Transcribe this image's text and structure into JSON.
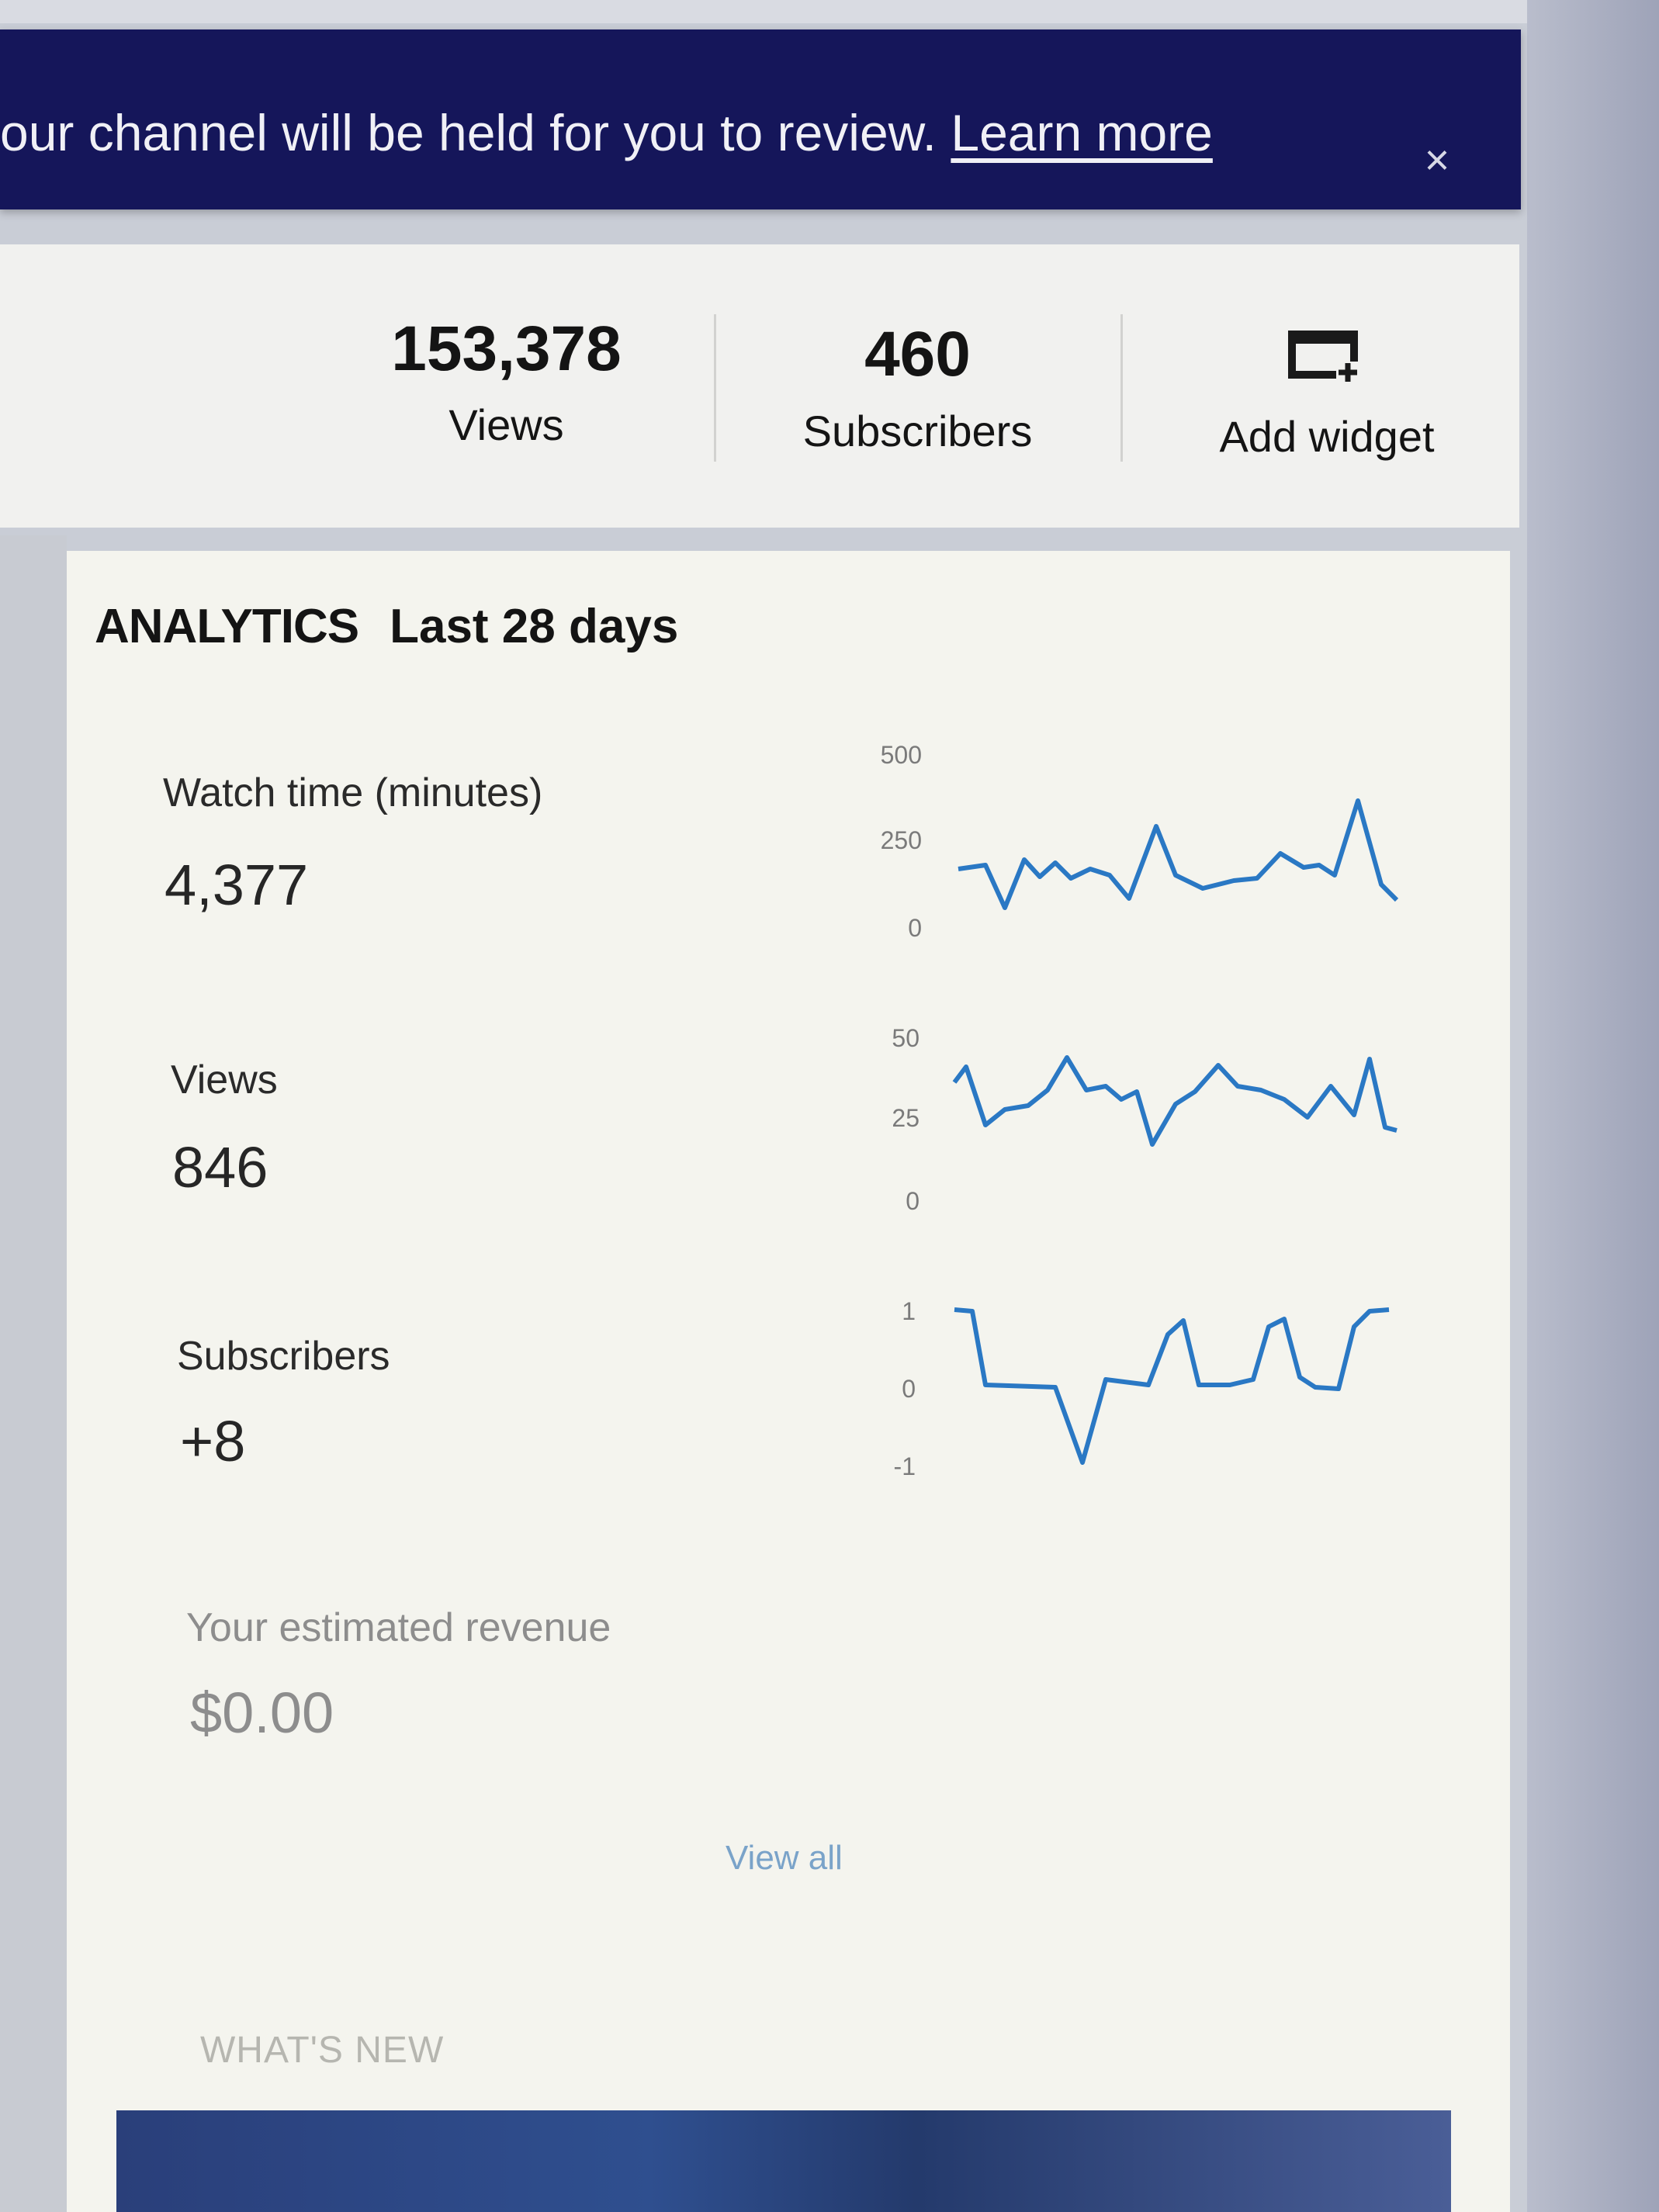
{
  "banner": {
    "message": "our channel will be held for you to review.",
    "link": "Learn more",
    "close_glyph": "×"
  },
  "stats": {
    "views_value": "153,378",
    "views_label": "Views",
    "subscribers_value": "460",
    "subscribers_label": "Subscribers",
    "add_widget_label": "Add widget",
    "add_widget_icon": "add-widget-icon"
  },
  "analytics": {
    "title": "ANALYTICS",
    "range": "Last 28 days",
    "watch_time": {
      "label": "Watch time (minutes)",
      "value": "4,377",
      "ticks": [
        "500",
        "250",
        "0"
      ]
    },
    "views": {
      "label": "Views",
      "value": "846",
      "ticks": [
        "50",
        "25",
        "0"
      ]
    },
    "subscribers": {
      "label": "Subscribers",
      "value": "+8",
      "ticks": [
        "1",
        "0",
        "-1"
      ]
    },
    "revenue": {
      "label": "Your estimated revenue",
      "value": "$0.00"
    },
    "view_all": "View all"
  },
  "whats_new": "WHAT'S NEW",
  "colors": {
    "banner_bg": "#15165a",
    "sparkline": "#2a78c4",
    "link_faded": "#7aa3c9"
  }
}
